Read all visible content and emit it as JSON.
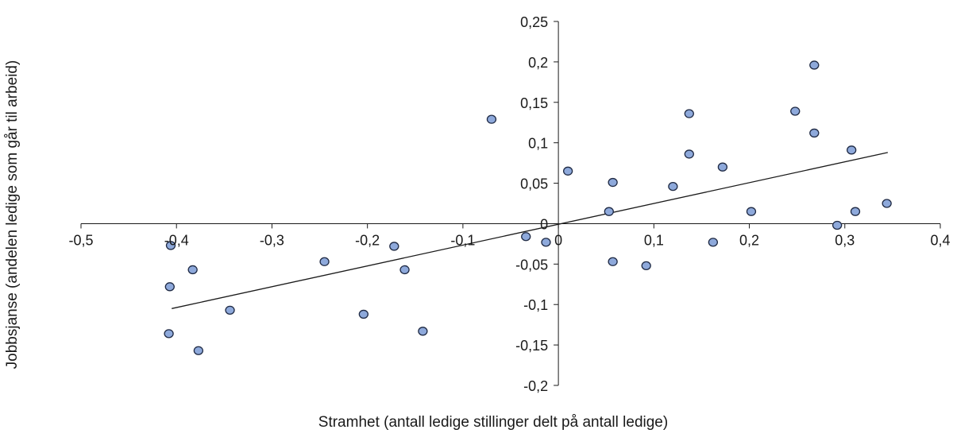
{
  "chart_data": {
    "type": "scatter",
    "title": "",
    "xlabel": "Stramhet (antall ledige stillinger delt på antall ledige)",
    "ylabel": "Jobbsjanse (andelen ledige som går til  arbeid)",
    "xlim": [
      -0.5,
      0.4
    ],
    "ylim": [
      -0.2,
      0.25
    ],
    "xticks": [
      -0.5,
      -0.4,
      -0.3,
      -0.2,
      -0.1,
      0,
      0.1,
      0.2,
      0.3,
      0.4
    ],
    "yticks": [
      -0.2,
      -0.15,
      -0.1,
      -0.05,
      0,
      0.05,
      0.1,
      0.15,
      0.2,
      0.25
    ],
    "xtick_labels": [
      "-0,5",
      "-0,4",
      "-0,3",
      "-0,2",
      "-0,1",
      "0",
      "0,1",
      "0,2",
      "0,3",
      "0,4"
    ],
    "ytick_labels": [
      "-0,2",
      "-0,15",
      "-0,1",
      "-0,05",
      "0",
      "0,05",
      "0,1",
      "0,15",
      "0,2",
      "0,25"
    ],
    "grid": false,
    "marker_color": "#8ea9db",
    "marker_edge_color": "#1f2a44",
    "line_color": "#1a1a1a",
    "points": [
      {
        "x": -0.406,
        "y": -0.027
      },
      {
        "x": -0.407,
        "y": -0.078
      },
      {
        "x": -0.408,
        "y": -0.136
      },
      {
        "x": -0.383,
        "y": -0.057
      },
      {
        "x": -0.377,
        "y": -0.157
      },
      {
        "x": -0.344,
        "y": -0.107
      },
      {
        "x": -0.245,
        "y": -0.047
      },
      {
        "x": -0.204,
        "y": -0.112
      },
      {
        "x": -0.172,
        "y": -0.028
      },
      {
        "x": -0.161,
        "y": -0.057
      },
      {
        "x": -0.142,
        "y": -0.133
      },
      {
        "x": -0.07,
        "y": 0.129
      },
      {
        "x": -0.034,
        "y": -0.016
      },
      {
        "x": -0.013,
        "y": -0.023
      },
      {
        "x": 0.01,
        "y": 0.065
      },
      {
        "x": 0.053,
        "y": 0.015
      },
      {
        "x": 0.057,
        "y": 0.051
      },
      {
        "x": 0.057,
        "y": -0.047
      },
      {
        "x": 0.092,
        "y": -0.052
      },
      {
        "x": 0.12,
        "y": 0.046
      },
      {
        "x": 0.137,
        "y": 0.136
      },
      {
        "x": 0.137,
        "y": 0.086
      },
      {
        "x": 0.162,
        "y": -0.023
      },
      {
        "x": 0.172,
        "y": 0.07
      },
      {
        "x": 0.202,
        "y": 0.015
      },
      {
        "x": 0.248,
        "y": 0.139
      },
      {
        "x": 0.268,
        "y": 0.196
      },
      {
        "x": 0.268,
        "y": 0.112
      },
      {
        "x": 0.292,
        "y": -0.002
      },
      {
        "x": 0.307,
        "y": 0.091
      },
      {
        "x": 0.311,
        "y": 0.015
      },
      {
        "x": 0.344,
        "y": 0.025
      }
    ],
    "trendline": {
      "x": [
        -0.405,
        0.345
      ],
      "y": [
        -0.105,
        0.088
      ]
    }
  }
}
